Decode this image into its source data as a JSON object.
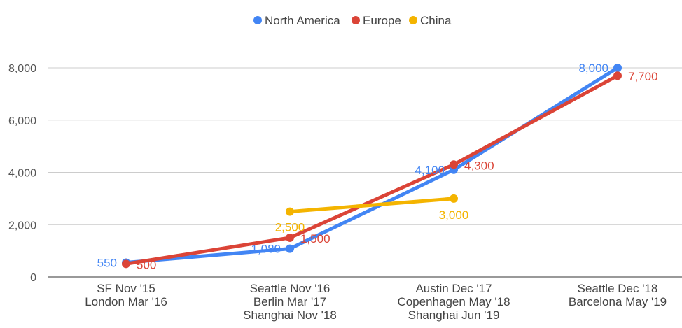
{
  "chart_data": {
    "type": "line",
    "categories": [
      [
        "SF Nov '15",
        "London Mar '16"
      ],
      [
        "Seattle Nov '16",
        "Berlin Mar '17",
        "Shanghai Nov '18"
      ],
      [
        "Austin Dec '17",
        "Copenhagen May '18",
        "Shanghai Jun '19"
      ],
      [
        "Seattle Dec '18",
        "Barcelona May '19"
      ]
    ],
    "series": [
      {
        "name": "North America",
        "color": "#4285f4",
        "values": [
          550,
          1080,
          4100,
          8000
        ],
        "labels": [
          "550",
          "1,080",
          "4,100",
          "8,000"
        ]
      },
      {
        "name": "Europe",
        "color": "#db4437",
        "values": [
          500,
          1500,
          4300,
          7700
        ],
        "labels": [
          "500",
          "1,500",
          "4,300",
          "7,700"
        ]
      },
      {
        "name": "China",
        "color": "#f4b400",
        "values": [
          null,
          2500,
          3000,
          null
        ],
        "labels": [
          null,
          "2,500",
          "3,000",
          null
        ]
      }
    ],
    "yticks": [
      0,
      2000,
      4000,
      6000,
      8000
    ],
    "ytick_labels": [
      "0",
      "2,000",
      "4,000",
      "6,000",
      "8,000"
    ],
    "ylim": [
      0,
      8000
    ],
    "grid": true,
    "legend_position": "top"
  }
}
